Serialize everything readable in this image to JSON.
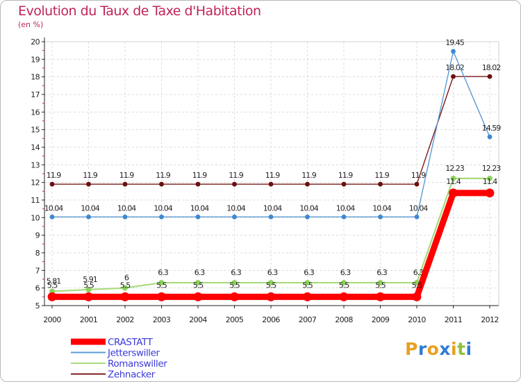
{
  "header": {
    "title": "Evolution du Taux de Taxe d'Habitation",
    "unit": "(en %)"
  },
  "brand": {
    "letters": [
      "P",
      "r",
      "o",
      "x",
      "i",
      "t",
      "i"
    ],
    "colors": [
      "#e8a023",
      "#2f7bd6",
      "#e8a023",
      "#2f7bd6",
      "#e8a023",
      "#8fc23a",
      "#2f7bd6"
    ]
  },
  "chart_data": {
    "type": "line",
    "title": "Evolution du Taux de Taxe d'Habitation",
    "ylabel": "(en %)",
    "xlabel": "",
    "ylim": [
      5,
      20
    ],
    "grid": true,
    "legend": "bottom-left",
    "x": [
      "2000",
      "2001",
      "2002",
      "2003",
      "2004",
      "2005",
      "2006",
      "2007",
      "2008",
      "2009",
      "2010",
      "2011",
      "2012"
    ],
    "y_ticks": [
      "5",
      "6",
      "7",
      "8",
      "9",
      "10",
      "11",
      "12",
      "13",
      "14",
      "15",
      "16",
      "17",
      "18",
      "19",
      "20"
    ],
    "series": [
      {
        "name": "Zehnacker",
        "color": "#7a1a1a",
        "values": [
          11.9,
          11.9,
          11.9,
          11.9,
          11.9,
          11.9,
          11.9,
          11.9,
          11.9,
          11.9,
          11.9,
          18.02,
          18.02
        ],
        "labels": [
          "11.9",
          "11.9",
          "11.9",
          "11.9",
          "11.9",
          "11.9",
          "11.9",
          "11.9",
          "11.9",
          "11.9",
          "11.9",
          "18.02",
          "18.02"
        ]
      },
      {
        "name": "Jetterswiller",
        "color": "#5b9bd5",
        "values": [
          10.04,
          10.04,
          10.04,
          10.04,
          10.04,
          10.04,
          10.04,
          10.04,
          10.04,
          10.04,
          10.04,
          19.45,
          14.59
        ],
        "labels": [
          "10.04",
          "10.04",
          "10.04",
          "10.04",
          "10.04",
          "10.04",
          "10.04",
          "10.04",
          "10.04",
          "10.04",
          "10.04",
          "19.45",
          "14.59"
        ]
      },
      {
        "name": "Romanswiller",
        "color": "#a8dc7c",
        "values": [
          5.81,
          5.91,
          6,
          6.3,
          6.3,
          6.3,
          6.3,
          6.3,
          6.3,
          6.3,
          6.3,
          12.23,
          12.23
        ],
        "labels": [
          "5.81",
          "5.91",
          "6",
          "6.3",
          "6.3",
          "6.3",
          "6.3",
          "6.3",
          "6.3",
          "6.3",
          "6.3",
          "12.23",
          "12.23"
        ]
      },
      {
        "name": "CRASTATT",
        "color": "#ff0000",
        "values": [
          5.5,
          5.5,
          5.5,
          5.5,
          5.5,
          5.5,
          5.5,
          5.5,
          5.5,
          5.5,
          5.5,
          11.4,
          11.4
        ],
        "labels": [
          "5.5",
          "5.5",
          "5.5",
          "5.5",
          "5.5",
          "5.5",
          "5.5",
          "5.5",
          "5.5",
          "5.5",
          "5.5",
          "11.4",
          "11.4"
        ]
      }
    ],
    "legend_order": [
      "CRASTATT",
      "Jetterswiller",
      "Romanswiller",
      "Zehnacker"
    ]
  }
}
